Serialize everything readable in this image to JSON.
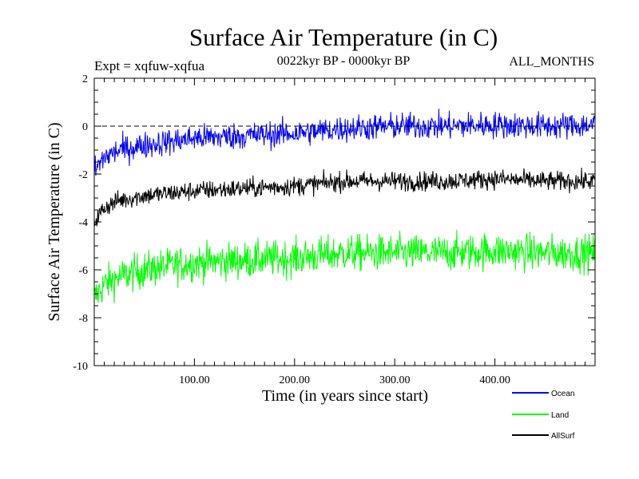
{
  "chart_data": {
    "type": "line",
    "title": "Surface Air Temperature (in C)",
    "subtitle": "0022kyr BP - 0000kyr BP",
    "experiment": "Expt = xqfuw-xqfua",
    "months": "ALL_MONTHS",
    "xlabel": "Time (in years since start)",
    "ylabel": "Surface Air Temperature (in C)",
    "xlim": [
      0,
      500
    ],
    "ylim": [
      -10,
      2
    ],
    "xticks": [
      100,
      200,
      300,
      400
    ],
    "xtick_labels": [
      "100.00",
      "200.00",
      "300.00",
      "400.00"
    ],
    "yticks": [
      -10,
      -8,
      -6,
      -4,
      -2,
      0,
      2
    ],
    "ytick_labels": [
      "-10",
      "-8",
      "-6",
      "-4",
      "-2",
      "0",
      "2"
    ],
    "reference_line": 0,
    "series": [
      {
        "name": "Ocean",
        "color": "#0000ff",
        "x": [
          0,
          10,
          25,
          50,
          100,
          150,
          200,
          250,
          300,
          350,
          400,
          450,
          500
        ],
        "values": [
          -1.9,
          -1.3,
          -1.0,
          -0.8,
          -0.5,
          -0.4,
          -0.3,
          -0.1,
          0.0,
          0.0,
          0.05,
          0.0,
          0.05
        ],
        "noise": 0.55
      },
      {
        "name": "Land",
        "color": "#00ff00",
        "x": [
          0,
          10,
          25,
          50,
          100,
          150,
          200,
          250,
          300,
          350,
          400,
          450,
          500
        ],
        "values": [
          -7.2,
          -6.6,
          -6.3,
          -6.0,
          -5.7,
          -5.6,
          -5.5,
          -5.3,
          -5.3,
          -5.3,
          -5.2,
          -5.3,
          -5.3
        ],
        "noise": 0.75
      },
      {
        "name": "AllSurf",
        "color": "#000000",
        "x": [
          0,
          10,
          25,
          50,
          100,
          150,
          200,
          250,
          300,
          350,
          400,
          450,
          500
        ],
        "values": [
          -4.0,
          -3.4,
          -3.1,
          -2.9,
          -2.7,
          -2.6,
          -2.5,
          -2.3,
          -2.3,
          -2.3,
          -2.2,
          -2.3,
          -2.3
        ],
        "noise": 0.4
      }
    ],
    "legend": {
      "position": "bottom-right",
      "entries": [
        "Ocean",
        "Land",
        "AllSurf"
      ]
    }
  }
}
